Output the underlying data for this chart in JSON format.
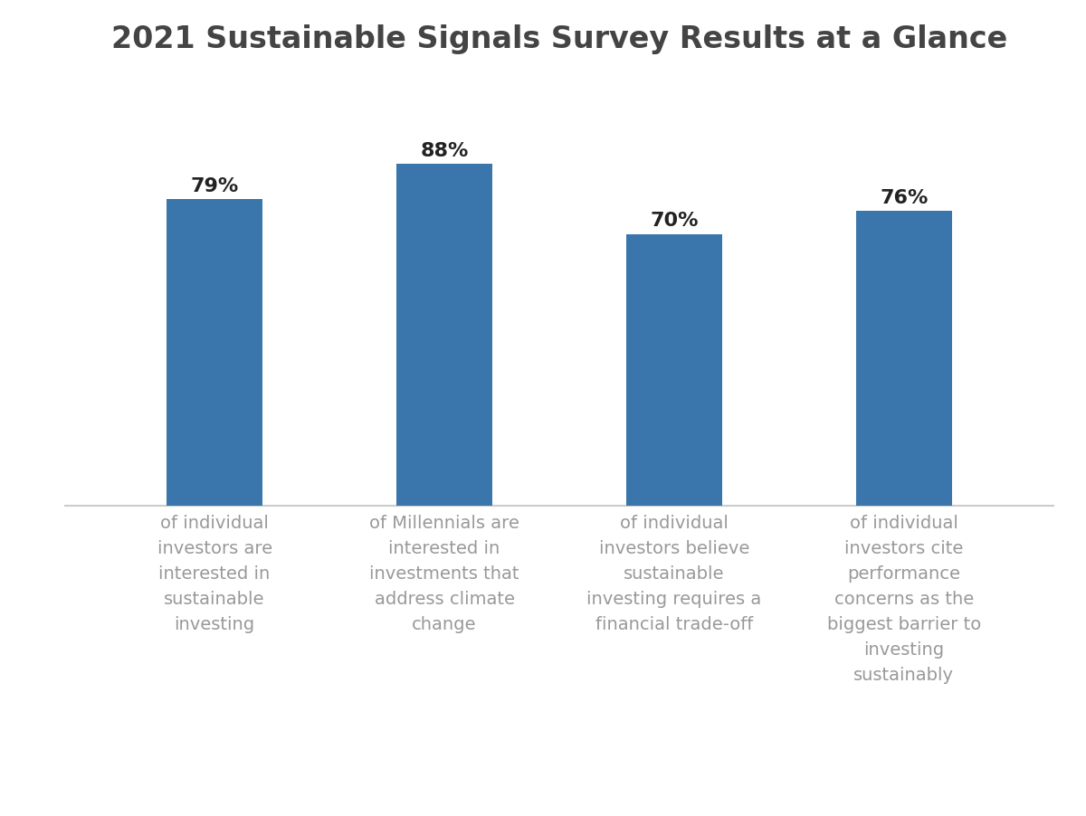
{
  "title": "2021 Sustainable Signals Survey Results at a Glance",
  "title_fontsize": 24,
  "title_fontweight": "bold",
  "title_color": "#444444",
  "bar_color": "#3A76AC",
  "values": [
    79,
    88,
    70,
    76
  ],
  "labels": [
    "of individual\ninvestors are\ninterested in\nsustainable\ninvesting",
    "of Millennials are\ninterested in\ninvestments that\naddress climate\nchange",
    "of individual\ninvestors believe\nsustainable\ninvesting requires a\nfinancial trade-off",
    "of individual\ninvestors cite\nperformance\nconcerns as the\nbiggest barrier to\ninvesting\nsustainably"
  ],
  "value_labels": [
    "79%",
    "88%",
    "70%",
    "76%"
  ],
  "ylim": [
    0,
    105
  ],
  "background_color": "#ffffff",
  "bar_width": 0.42,
  "value_fontsize": 16,
  "value_fontweight": "bold",
  "value_color": "#222222",
  "label_fontsize": 14,
  "label_color": "#999999",
  "spine_color": "#cccccc"
}
